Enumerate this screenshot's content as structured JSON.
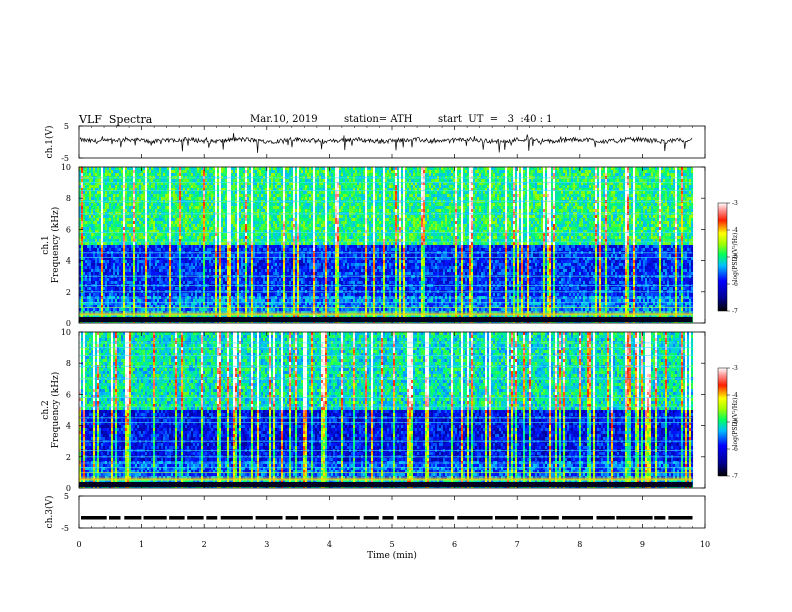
{
  "header": {
    "title": "VLF  Spectra",
    "date": "Mar.10, 2019",
    "station": "station= ATH",
    "start": "start  UT  =   3  :40 : 1"
  },
  "chart_data": [
    {
      "type": "line",
      "panel": "ch1-waveform",
      "ylabel": "ch.1(V)",
      "yticks": [
        "5",
        "-5"
      ],
      "ylim": [
        -5,
        5
      ],
      "xlim": [
        0,
        10
      ],
      "trace_end_min": 9.8,
      "baseline_v": 0.5,
      "note_levels": "noisy waveform around ~0.5 V with negative spikes"
    },
    {
      "type": "heatmap",
      "panel": "ch1-spectrogram",
      "ylabel": "ch.1\nFrequency  (kHz)",
      "ylabel_line1": "ch.1",
      "ylabel_line2": "Frequency  (kHz)",
      "yticks": [
        "0",
        "2",
        "4",
        "6",
        "8",
        "10"
      ],
      "ylim": [
        0,
        10
      ],
      "xlim": [
        0,
        10
      ],
      "colorbar": {
        "label": "log(PSD)(V²/Hz)",
        "ticks": [
          "-3",
          "-4",
          "-5",
          "-6",
          "-7"
        ],
        "range": [
          -7,
          -3
        ]
      },
      "colors": [
        "#000080",
        "#0000ff",
        "#00ffff",
        "#00ff00",
        "#ffff00",
        "#ff0000",
        "#ffffff"
      ]
    },
    {
      "type": "heatmap",
      "panel": "ch2-spectrogram",
      "ylabel_line1": "ch.2",
      "ylabel_line2": "Frequency  (kHz)",
      "yticks": [
        "0",
        "2",
        "4",
        "6",
        "8",
        "10"
      ],
      "ylim": [
        0,
        10
      ],
      "xlim": [
        0,
        10
      ],
      "colorbar": {
        "label": "log(PSD)(V²/Hz)",
        "ticks": [
          "-3",
          "-4",
          "-5",
          "-6",
          "-7"
        ],
        "range": [
          -7,
          -3
        ]
      }
    },
    {
      "type": "line",
      "panel": "ch3-waveform",
      "ylabel": "ch.3(V)",
      "yticks": [
        "5",
        "-5"
      ],
      "ylim": [
        -5,
        5
      ],
      "xlim": [
        0,
        10
      ],
      "level_v": -1.8,
      "style": "dashed thick black"
    }
  ],
  "xaxis": {
    "label": "Time  (min)",
    "ticks": [
      "0",
      "1",
      "2",
      "3",
      "4",
      "5",
      "6",
      "7",
      "8",
      "9",
      "10"
    ]
  }
}
